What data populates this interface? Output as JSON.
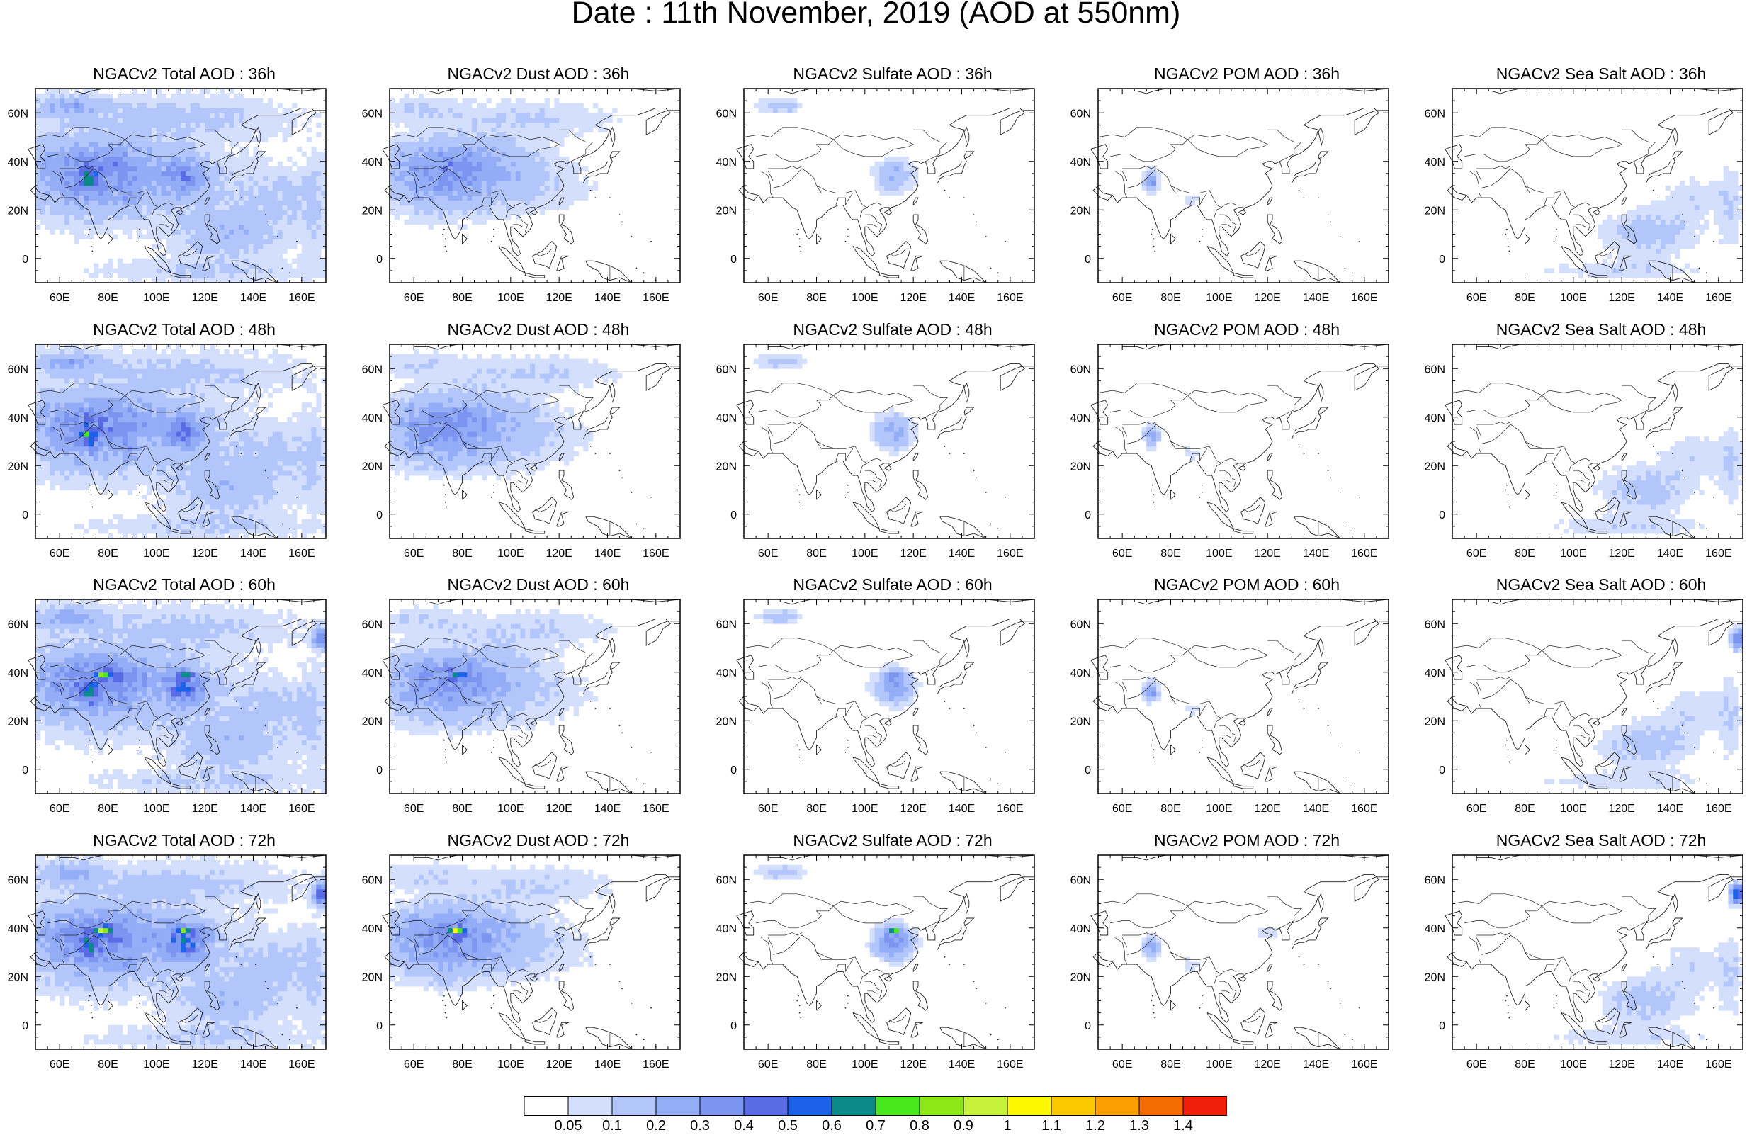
{
  "title": "Date : 11th November, 2019 (AOD at 550nm)",
  "panels": [
    {
      "title": "NGACv2 Total AOD : 36h",
      "species": "total",
      "hour": 36
    },
    {
      "title": "NGACv2 Dust AOD : 36h",
      "species": "dust",
      "hour": 36
    },
    {
      "title": "NGACv2 Sulfate AOD : 36h",
      "species": "sulfate",
      "hour": 36
    },
    {
      "title": "NGACv2 POM AOD : 36h",
      "species": "pom",
      "hour": 36
    },
    {
      "title": "NGACv2 Sea Salt AOD : 36h",
      "species": "seasalt",
      "hour": 36
    },
    {
      "title": "NGACv2 Total AOD : 48h",
      "species": "total",
      "hour": 48
    },
    {
      "title": "NGACv2 Dust AOD : 48h",
      "species": "dust",
      "hour": 48
    },
    {
      "title": "NGACv2 Sulfate AOD : 48h",
      "species": "sulfate",
      "hour": 48
    },
    {
      "title": "NGACv2 POM AOD : 48h",
      "species": "pom",
      "hour": 48
    },
    {
      "title": "NGACv2 Sea Salt AOD : 48h",
      "species": "seasalt",
      "hour": 48
    },
    {
      "title": "NGACv2 Total AOD : 60h",
      "species": "total",
      "hour": 60
    },
    {
      "title": "NGACv2 Dust AOD : 60h",
      "species": "dust",
      "hour": 60
    },
    {
      "title": "NGACv2 Sulfate AOD : 60h",
      "species": "sulfate",
      "hour": 60
    },
    {
      "title": "NGACv2 POM AOD : 60h",
      "species": "pom",
      "hour": 60
    },
    {
      "title": "NGACv2 Sea Salt AOD : 60h",
      "species": "seasalt",
      "hour": 60
    },
    {
      "title": "NGACv2 Total AOD : 72h",
      "species": "total",
      "hour": 72
    },
    {
      "title": "NGACv2 Dust AOD : 72h",
      "species": "dust",
      "hour": 72
    },
    {
      "title": "NGACv2 Sulfate AOD : 72h",
      "species": "sulfate",
      "hour": 72
    },
    {
      "title": "NGACv2 POM AOD : 72h",
      "species": "pom",
      "hour": 72
    },
    {
      "title": "NGACv2 Sea Salt  AOD : 72h",
      "species": "seasalt",
      "hour": 72
    }
  ],
  "map_extent": {
    "lon": [
      50,
      170
    ],
    "lat": [
      -10,
      70
    ]
  },
  "x_ticks": [
    60,
    80,
    100,
    120,
    140,
    160
  ],
  "x_tick_labels": [
    "60E",
    "80E",
    "100E",
    "120E",
    "140E",
    "160E"
  ],
  "y_ticks": [
    0,
    20,
    40,
    60
  ],
  "y_tick_labels": [
    "0",
    "20N",
    "40N",
    "60N"
  ],
  "colorbar": {
    "labels": [
      "0.05",
      "0.1",
      "0.2",
      "0.3",
      "0.4",
      "0.5",
      "0.6",
      "0.7",
      "0.8",
      "0.9",
      "1",
      "1.1",
      "1.2",
      "1.3",
      "1.4"
    ],
    "colors": [
      "#ffffff",
      "#d4dffd",
      "#b2c6fb",
      "#93adf7",
      "#7b95f0",
      "#5a6be6",
      "#1c62e8",
      "#0b8a8a",
      "#49e81e",
      "#8de616",
      "#c7f23b",
      "#fbf800",
      "#fbc800",
      "#f9a000",
      "#f56c00",
      "#f01f0b"
    ]
  }
}
